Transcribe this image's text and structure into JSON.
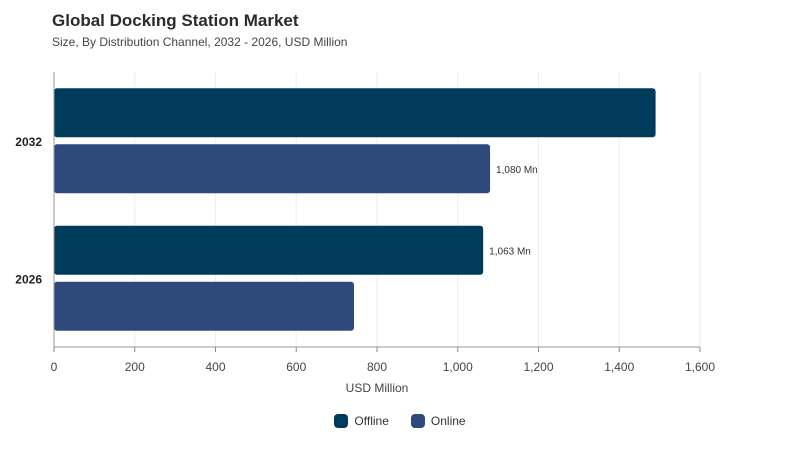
{
  "title": "Global Docking Station Market",
  "subtitle": "Size, By Distribution Channel, 2032 - 2026, USD Million",
  "chart_data": {
    "type": "bar",
    "orientation": "horizontal",
    "categories": [
      "2032",
      "2026"
    ],
    "series": [
      {
        "name": "Offline",
        "values": [
          1490,
          1063
        ],
        "color": "#003b5c",
        "labels": [
          "",
          "1,063 Mn"
        ]
      },
      {
        "name": "Online",
        "values": [
          1080,
          743
        ],
        "color": "#2e4a7d",
        "labels": [
          "1,080 Mn",
          ""
        ]
      }
    ],
    "xlabel": "USD Million",
    "xlim": [
      0,
      1600
    ],
    "xticks": [
      "0",
      "200",
      "400",
      "600",
      "800",
      "1,000",
      "1,200",
      "1,400",
      "1,600"
    ],
    "xtick_values": [
      0,
      200,
      400,
      600,
      800,
      1000,
      1200,
      1400,
      1600
    ],
    "grid": true,
    "legend_position": "bottom"
  }
}
